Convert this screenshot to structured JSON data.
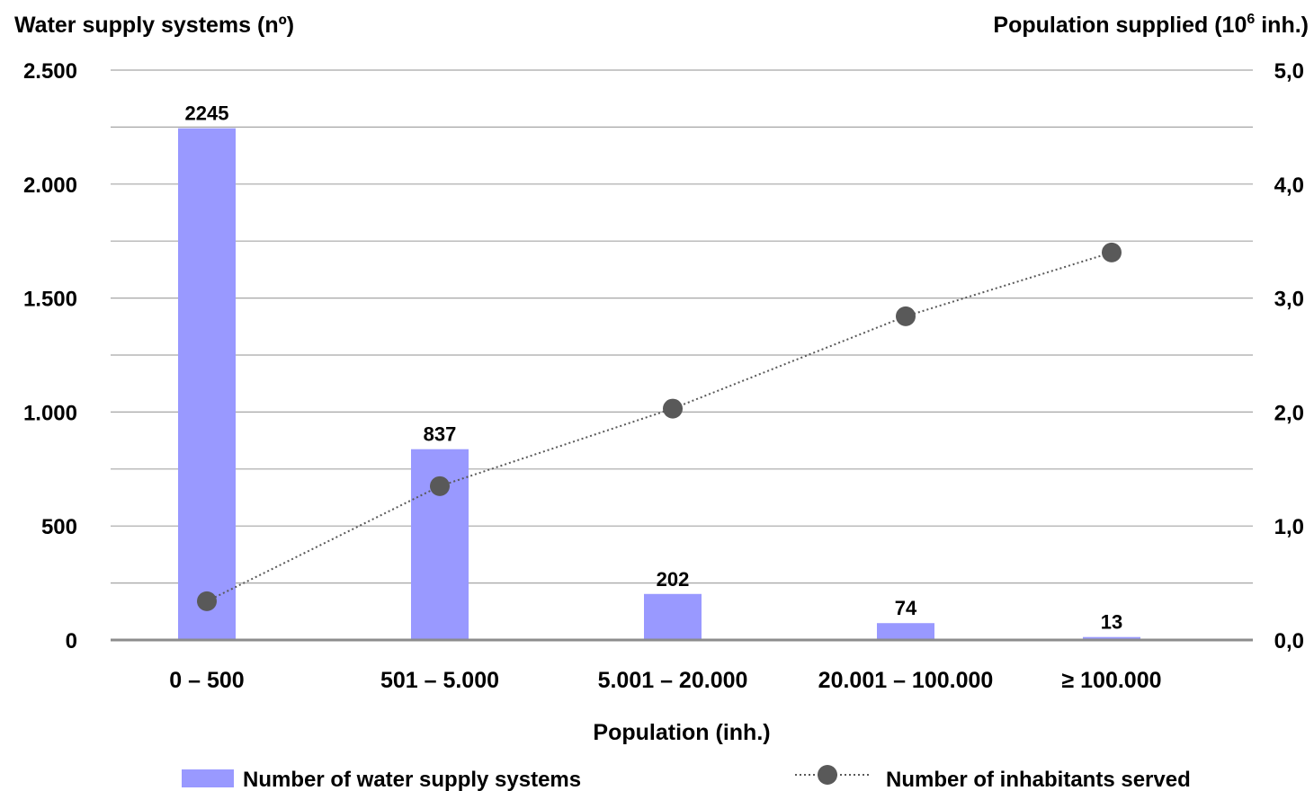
{
  "chart_data": {
    "type": "bar",
    "title": "",
    "xlabel": "Population (inh.)",
    "categories": [
      "0 – 500",
      "501 – 5.000",
      "5.001 – 20.000",
      "20.001 – 100.000",
      "≥ 100.000"
    ],
    "y_left": {
      "label": "Water supply systems (nº)",
      "ylim": [
        0,
        2500
      ],
      "ticks": [
        0,
        500,
        1000,
        1500,
        2000,
        2500
      ],
      "tick_labels": [
        "0",
        "500",
        "1.000",
        "1.500",
        "2.000",
        "2.500"
      ]
    },
    "y_right": {
      "label_main": "Population supplied (10",
      "label_sup": "6",
      "label_end": " inh.)",
      "ylim": [
        0,
        5
      ],
      "ticks": [
        0,
        1,
        2,
        3,
        4,
        5
      ],
      "tick_labels": [
        "0,0",
        "1,0",
        "2,0",
        "3,0",
        "4,0",
        "5,0"
      ]
    },
    "series": [
      {
        "name": "Number of water supply systems",
        "type": "bar",
        "axis": "left",
        "color": "#9999ff",
        "values": [
          2245,
          837,
          202,
          74,
          13
        ],
        "data_labels": [
          "2245",
          "837",
          "202",
          "74",
          "13"
        ]
      },
      {
        "name": "Number of inhabitants served",
        "type": "line",
        "axis": "right",
        "color": "#595959",
        "line_style": "dotted",
        "marker": "circle",
        "values": [
          0.34,
          1.35,
          2.03,
          2.84,
          3.4
        ]
      }
    ],
    "grid": true,
    "legend": "bottom"
  }
}
